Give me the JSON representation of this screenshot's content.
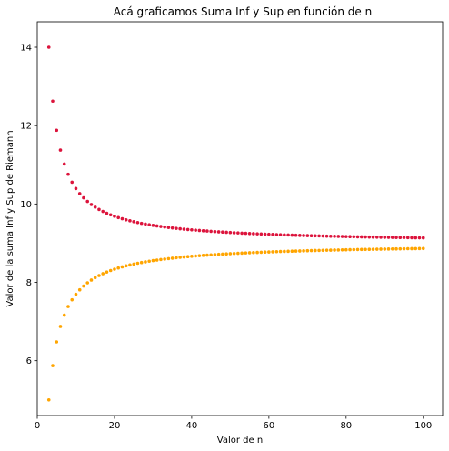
{
  "chart_data": {
    "type": "scatter",
    "title": "Acá graficamos Suma Inf y Sup en función de n",
    "xlabel": "Valor de n",
    "ylabel": "Valor de la suma Inf y Sup de Riemann",
    "xlim": [
      0,
      105
    ],
    "ylim": [
      4.6,
      14.65
    ],
    "xticks": [
      0,
      20,
      40,
      60,
      80,
      100
    ],
    "yticks": [
      6,
      8,
      10,
      12,
      14
    ],
    "grid": false,
    "legend": "none",
    "x": [
      3,
      4,
      5,
      6,
      7,
      8,
      9,
      10,
      11,
      12,
      13,
      14,
      15,
      16,
      17,
      18,
      19,
      20,
      21,
      22,
      23,
      24,
      25,
      26,
      27,
      28,
      29,
      30,
      31,
      32,
      33,
      34,
      35,
      36,
      37,
      38,
      39,
      40,
      41,
      42,
      43,
      44,
      45,
      46,
      47,
      48,
      49,
      50,
      51,
      52,
      53,
      54,
      55,
      56,
      57,
      58,
      59,
      60,
      61,
      62,
      63,
      64,
      65,
      66,
      67,
      68,
      69,
      70,
      71,
      72,
      73,
      74,
      75,
      76,
      77,
      78,
      79,
      80,
      81,
      82,
      83,
      84,
      85,
      86,
      87,
      88,
      89,
      90,
      91,
      92,
      93,
      94,
      95,
      96,
      97,
      98,
      99,
      100
    ],
    "series": [
      {
        "color": "#dc143c",
        "values": [
          14.0,
          12.625,
          11.88,
          11.375,
          11.0204,
          10.7578,
          10.5556,
          10.395,
          10.2645,
          10.1563,
          10.0651,
          9.9872,
          9.92,
          9.8613,
          9.8096,
          9.7639,
          9.723,
          9.6863,
          9.6531,
          9.6229,
          9.5955,
          9.5703,
          9.5472,
          9.5259,
          9.5062,
          9.4879,
          9.4709,
          9.455,
          9.4402,
          9.4263,
          9.4132,
          9.4009,
          9.3894,
          9.3785,
          9.3681,
          9.3583,
          9.3491,
          9.3403,
          9.3319,
          9.3239,
          9.3163,
          9.3091,
          9.3022,
          9.2955,
          9.2892,
          9.2832,
          9.2773,
          9.2718,
          9.2664,
          9.2613,
          9.2563,
          9.2515,
          9.2469,
          9.2425,
          9.2382,
          9.2341,
          9.2301,
          9.2263,
          9.2225,
          9.2189,
          9.2154,
          9.2121,
          9.2088,
          9.2056,
          9.2025,
          9.1995,
          9.1966,
          9.1938,
          9.191,
          9.1884,
          9.1858,
          9.1832,
          9.1808,
          9.1784,
          9.176,
          9.1738,
          9.1716,
          9.1694,
          9.1673,
          9.1652,
          9.1632,
          9.1613,
          9.1594,
          9.1575,
          9.1557,
          9.1539,
          9.1522,
          9.1505,
          9.1488,
          9.1472,
          9.1456,
          9.1441,
          9.1426,
          9.1411,
          9.1396,
          9.1382,
          9.1368,
          9.1354
        ]
      },
      {
        "color": "#ffa500",
        "values": [
          5.0,
          5.875,
          6.48,
          6.875,
          7.1633,
          7.3828,
          7.5556,
          7.695,
          7.8099,
          7.9063,
          7.9882,
          8.0587,
          8.12,
          8.1738,
          8.2215,
          8.2639,
          8.3019,
          8.3363,
          8.3673,
          8.3956,
          8.4215,
          8.4453,
          8.4672,
          8.4874,
          8.5062,
          8.5236,
          8.5398,
          8.555,
          8.5692,
          8.5825,
          8.595,
          8.6068,
          8.618,
          8.6285,
          8.6384,
          8.6479,
          8.6568,
          8.6653,
          8.6734,
          8.6811,
          8.6885,
          8.6955,
          8.7022,
          8.7086,
          8.7148,
          8.7207,
          8.7264,
          8.7318,
          8.737,
          8.7421,
          8.7469,
          8.7516,
          8.7561,
          8.7604,
          8.7646,
          8.7686,
          8.7725,
          8.7763,
          8.7799,
          8.7834,
          8.7868,
          8.7901,
          8.7933,
          8.7964,
          8.7994,
          8.8023,
          8.8051,
          8.8078,
          8.8105,
          8.8131,
          8.8156,
          8.818,
          8.8204,
          8.8227,
          8.825,
          8.8272,
          8.8293,
          8.8314,
          8.8334,
          8.8354,
          8.8374,
          8.8393,
          8.8411,
          8.8429,
          8.8447,
          8.8464,
          8.8481,
          8.8497,
          8.8513,
          8.8529,
          8.8544,
          8.8559,
          8.8574,
          8.8589,
          8.8603,
          8.8617,
          8.863,
          8.8644
        ]
      }
    ]
  }
}
